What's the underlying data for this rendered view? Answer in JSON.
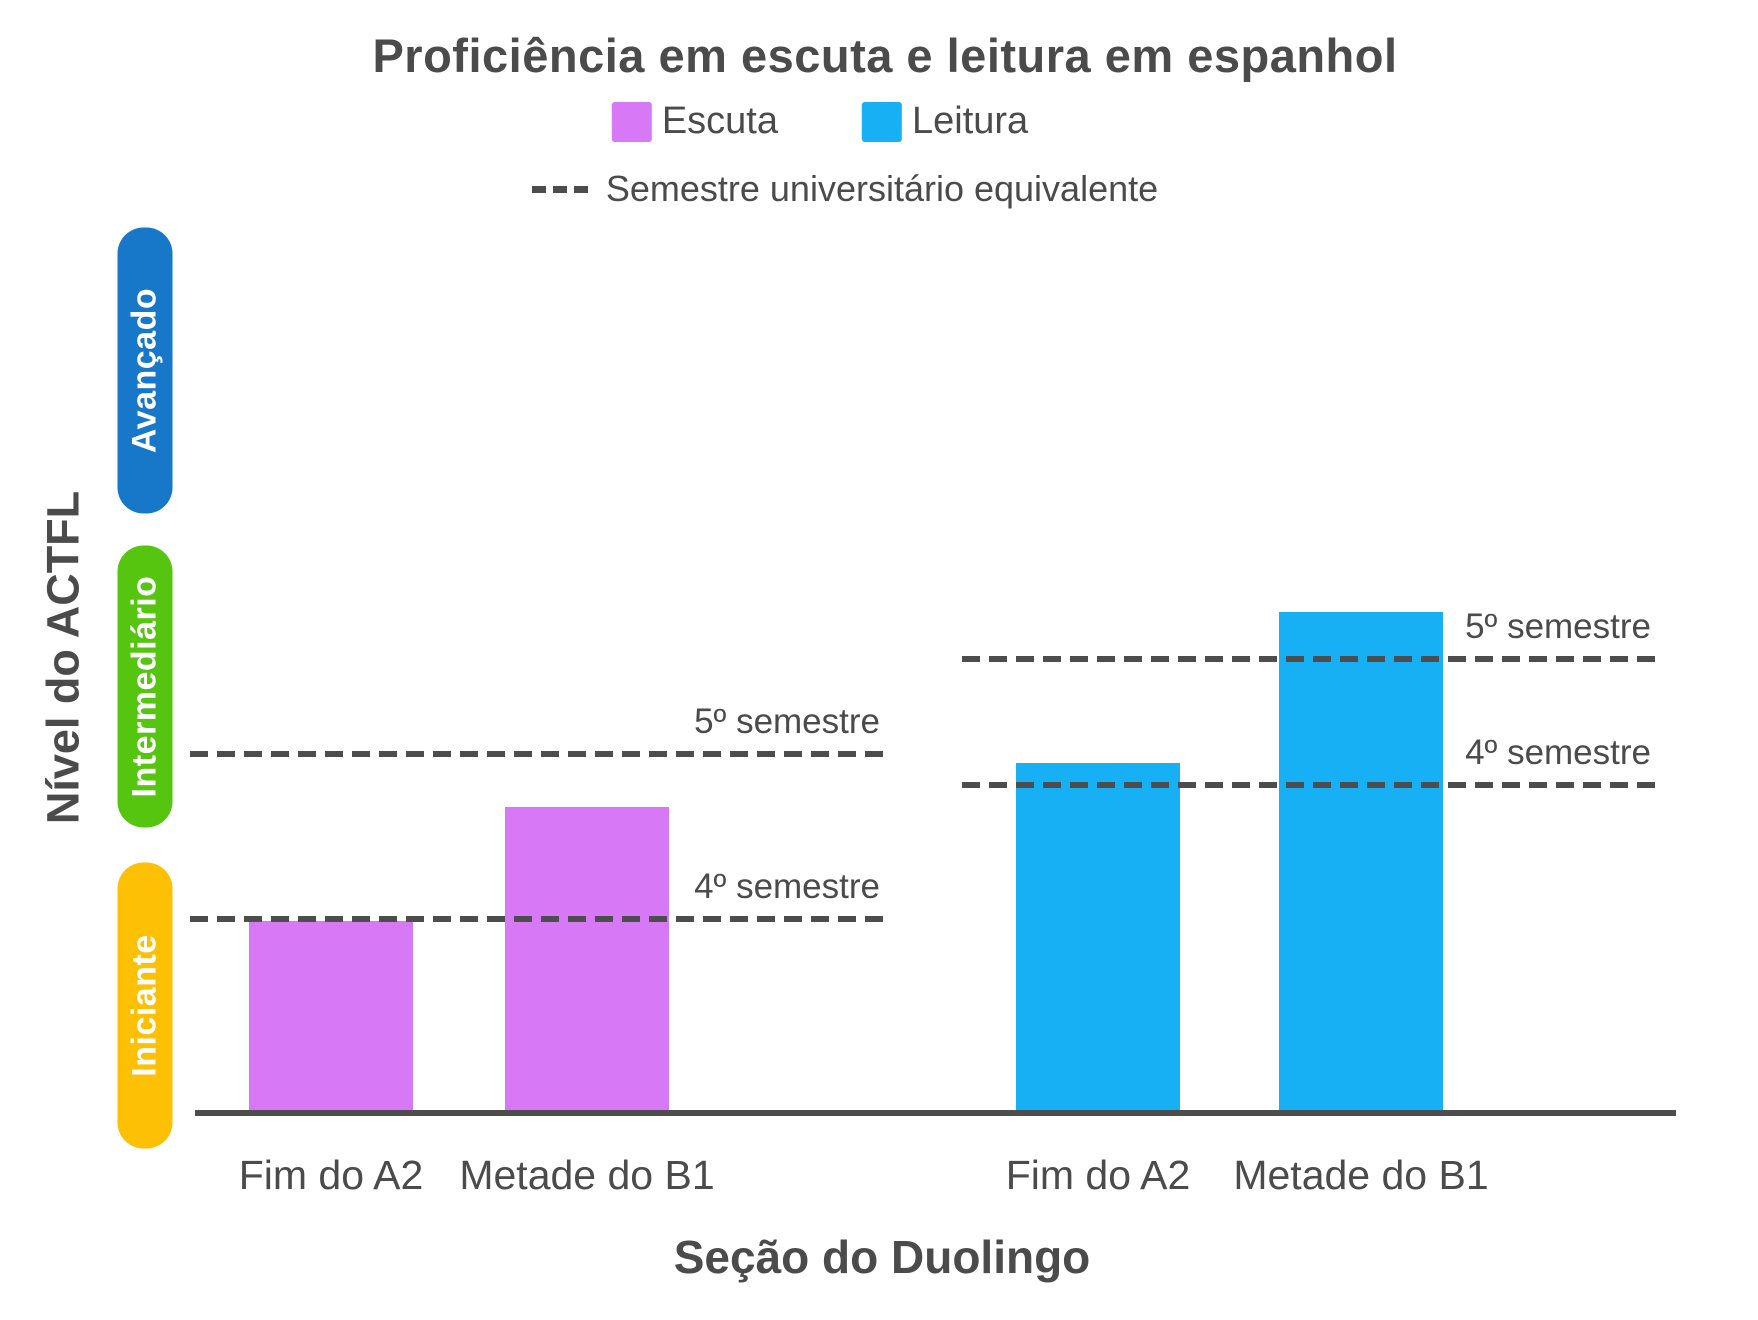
{
  "figure": {
    "title": "Proficiência em escuta e leitura em espanhol",
    "legend": {
      "series": [
        {
          "label": "Escuta",
          "color": "#d778f6"
        },
        {
          "label": "Leitura",
          "color": "#17b0f5"
        }
      ],
      "line_legend_label": "Semestre universitário equivalente"
    },
    "y_axis": {
      "title": "Nível do ACTFL",
      "bands": [
        {
          "label": "Avançado",
          "color": "#1777c9"
        },
        {
          "label": "Intermediário",
          "color": "#55c510"
        },
        {
          "label": "Iniciante",
          "color": "#fdc005"
        }
      ]
    },
    "x_axis": {
      "title": "Seção do Duolingo",
      "tick_labels": [
        "Fim do A2",
        "Metade do B1",
        "Fim do A2",
        "Metade do B1"
      ]
    }
  },
  "chart_data": {
    "type": "bar",
    "title": "Proficiência em escuta e leitura em espanhol",
    "xlabel": "Seção do Duolingo",
    "ylabel": "Nível do ACTFL",
    "categories": [
      "Fim do A2",
      "Metade do B1"
    ],
    "series": [
      {
        "name": "Escuta",
        "color": "#d778f6",
        "values": [
          0.217,
          0.345
        ]
      },
      {
        "name": "Leitura",
        "color": "#17b0f5",
        "values": [
          0.395,
          0.565
        ]
      }
    ],
    "value_scale": "fraction of y-axis height (0 = x-axis baseline, 1 = top of 'Avançado' band)",
    "y_bands": [
      {
        "label": "Iniciante",
        "color": "#fdc005",
        "range": [
          0.0,
          0.283
        ]
      },
      {
        "label": "Intermediário",
        "color": "#55c510",
        "range": [
          0.323,
          0.641
        ]
      },
      {
        "label": "Avançado",
        "color": "#1777c9",
        "range": [
          0.677,
          1.0
        ]
      }
    ],
    "reference_lines": [
      {
        "group": "Escuta",
        "label": "5º semestre",
        "value": 0.405
      },
      {
        "group": "Escuta",
        "label": "4º semestre",
        "value": 0.219
      },
      {
        "group": "Leitura",
        "label": "5º semestre",
        "value": 0.512
      },
      {
        "group": "Leitura",
        "label": "4º semestre",
        "value": 0.37
      }
    ],
    "reference_line_legend": "Semestre universitário equivalente",
    "legend_position": "top",
    "grid": false
  }
}
